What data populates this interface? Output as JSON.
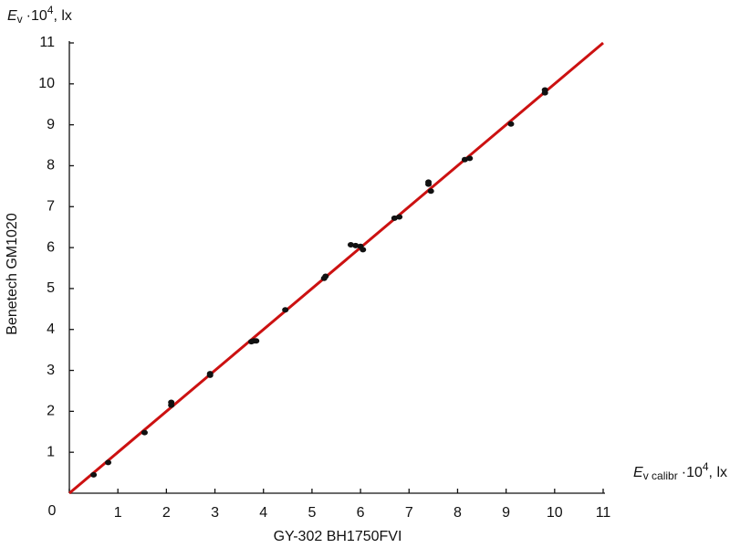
{
  "chart_data": {
    "type": "scatter",
    "y_unit": {
      "symbol": "E",
      "subscript": "v",
      "multiplier": "·10",
      "exponent": "4",
      "unit": ", lx"
    },
    "x_unit": {
      "symbol": "E",
      "subscript": "v calibr",
      "multiplier": "·10",
      "exponent": "4",
      "unit": ", lx"
    },
    "y_label": "Benetech GM1020",
    "x_label": "GY-302 BH1750FVI",
    "x": [
      0.5,
      0.8,
      1.55,
      2.1,
      2.1,
      2.9,
      2.9,
      3.75,
      3.8,
      3.85,
      4.45,
      5.25,
      5.28,
      5.8,
      5.9,
      6.0,
      6.05,
      6.7,
      6.8,
      7.4,
      7.4,
      7.45,
      8.15,
      8.25,
      9.1,
      9.8,
      9.8
    ],
    "values": [
      0.45,
      0.75,
      1.48,
      2.15,
      2.22,
      2.88,
      2.92,
      3.7,
      3.72,
      3.72,
      4.48,
      5.25,
      5.3,
      6.07,
      6.05,
      6.03,
      5.95,
      6.72,
      6.75,
      7.6,
      7.55,
      7.38,
      8.15,
      8.18,
      9.02,
      9.78,
      9.85
    ],
    "color": "#111111",
    "fit_line": {
      "x": [
        0,
        11
      ],
      "y": [
        0,
        11
      ],
      "color": "#cc1111"
    },
    "xlim": [
      0,
      11
    ],
    "ylim": [
      0,
      11
    ],
    "xticks": [
      0,
      1,
      2,
      3,
      4,
      5,
      6,
      7,
      8,
      9,
      10,
      11
    ],
    "yticks": [
      1,
      2,
      3,
      4,
      5,
      6,
      7,
      8,
      9,
      10,
      11
    ],
    "grid": false
  }
}
